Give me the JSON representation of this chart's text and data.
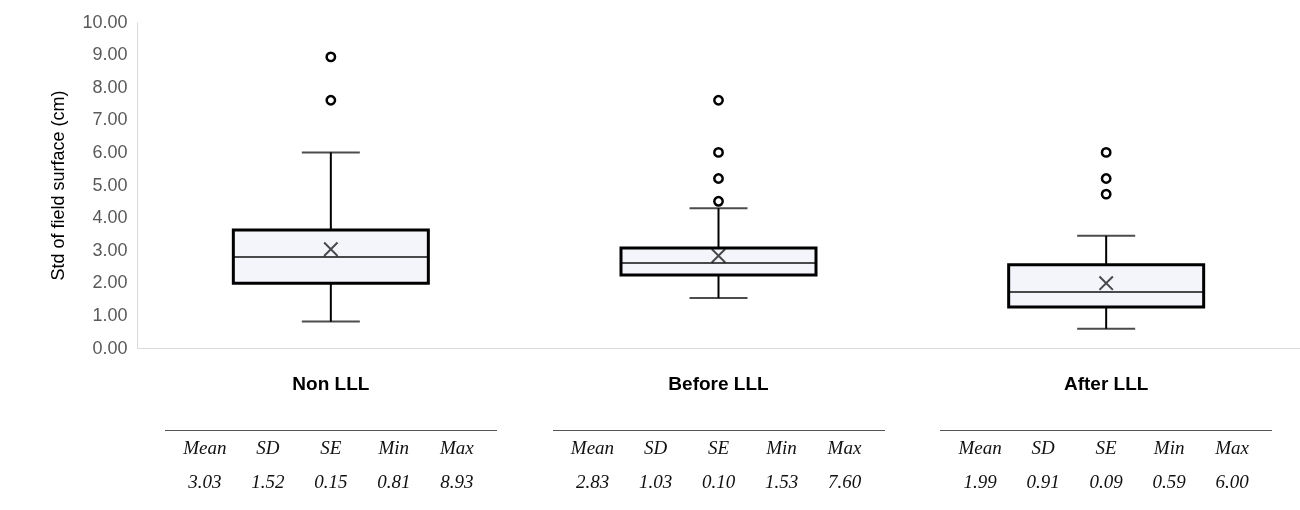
{
  "chart_data": {
    "type": "box",
    "ylabel": "Std of field surface (cm)",
    "categories": [
      "Non LLL",
      "Before LLL",
      "After LLL"
    ],
    "boxes": [
      {
        "low": 0.81,
        "q1": 1.99,
        "median": 2.79,
        "q3": 3.62,
        "high": 6.0,
        "mean": 3.03,
        "outliers": [
          7.6,
          8.93
        ]
      },
      {
        "low": 1.53,
        "q1": 2.24,
        "median": 2.61,
        "q3": 3.07,
        "high": 4.29,
        "mean": 2.83,
        "outliers": [
          4.5,
          5.2,
          6.0,
          7.6
        ]
      },
      {
        "low": 0.59,
        "q1": 1.26,
        "median": 1.72,
        "q3": 2.55,
        "high": 3.44,
        "mean": 1.99,
        "outliers": [
          4.72,
          5.2,
          6.0
        ]
      }
    ],
    "ylim": [
      0,
      10
    ],
    "yticks": [
      {
        "value": 0,
        "label": "0.00"
      },
      {
        "value": 1,
        "label": "1.00"
      },
      {
        "value": 2,
        "label": "2.00"
      },
      {
        "value": 3,
        "label": "3.00"
      },
      {
        "value": 4,
        "label": "4.00"
      },
      {
        "value": 5,
        "label": "5.00"
      },
      {
        "value": 6,
        "label": "6.00"
      },
      {
        "value": 7,
        "label": "7.00"
      },
      {
        "value": 8,
        "label": "8.00"
      },
      {
        "value": 9,
        "label": "9.00"
      },
      {
        "value": 10,
        "label": "10.00"
      }
    ],
    "grid": false,
    "annotations": [
      "Mean",
      "SD",
      "SE",
      "Min",
      "Max",
      "3.03",
      "1.52",
      "0.15",
      "0.81",
      "8.93",
      "Mean",
      "SD",
      "SE",
      "Min",
      "Max",
      "2.83",
      "1.03",
      "0.10",
      "1.53",
      "7.60",
      "Mean",
      "SD",
      "SE",
      "Min",
      "Max",
      "1.99",
      "0.91",
      "0.09",
      "0.59",
      "6.00"
    ]
  }
}
